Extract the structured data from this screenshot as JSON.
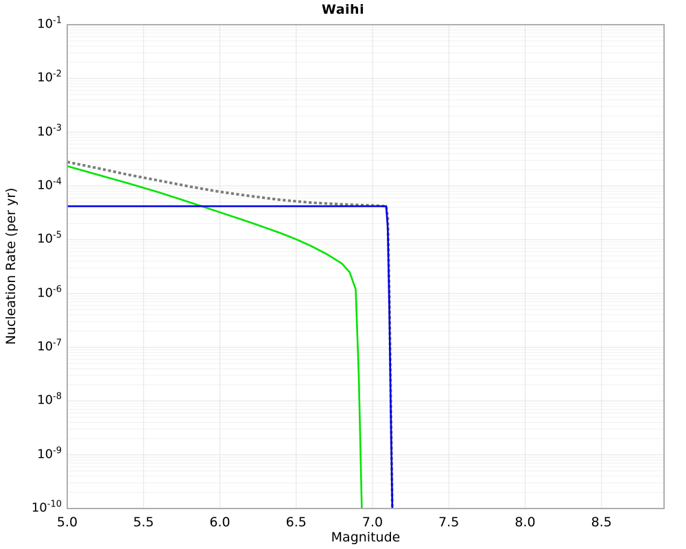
{
  "chart_data": {
    "type": "line",
    "title": "Waihi",
    "xlabel": "Magnitude",
    "ylabel": "Nucleation Rate (per yr)",
    "xlim": [
      5.0,
      8.91
    ],
    "ylim": [
      1e-10,
      0.1
    ],
    "yscale": "log",
    "grid": "major+minor",
    "legend": false,
    "x_ticks": [
      "5.0",
      "5.5",
      "6.0",
      "6.5",
      "7.0",
      "7.5",
      "8.0",
      "8.5"
    ],
    "x_tick_values": [
      5.0,
      5.5,
      6.0,
      6.5,
      7.0,
      7.5,
      8.0,
      8.5
    ],
    "y_tick_exponents": [
      -1,
      -2,
      -3,
      -4,
      -5,
      -6,
      -7,
      -8,
      -9,
      -10
    ],
    "series": [
      {
        "name": "dotted-gray-curve",
        "color": "#7c7c7c",
        "style": "dotted",
        "width": 3.8,
        "points": [
          [
            5.0,
            0.00028
          ],
          [
            5.2,
            0.000214
          ],
          [
            5.4,
            0.000162
          ],
          [
            5.6,
            0.000126
          ],
          [
            5.8,
            9.8e-05
          ],
          [
            6.0,
            7.8e-05
          ],
          [
            6.2,
            6.5e-05
          ],
          [
            6.4,
            5.5e-05
          ],
          [
            6.6,
            4.9e-05
          ],
          [
            6.8,
            4.55e-05
          ],
          [
            7.0,
            4.35e-05
          ],
          [
            7.09,
            4.2e-05
          ],
          [
            7.1,
            2.5e-05
          ],
          [
            7.11,
            1e-06
          ],
          [
            7.12,
            1e-08
          ],
          [
            7.13,
            1e-10
          ]
        ]
      },
      {
        "name": "green-solid-curve",
        "color": "#00e400",
        "style": "solid",
        "width": 2.6,
        "points": [
          [
            5.0,
            0.000234
          ],
          [
            5.2,
            0.000162
          ],
          [
            5.4,
            0.000112
          ],
          [
            5.6,
            7.6e-05
          ],
          [
            5.8,
            5e-05
          ],
          [
            6.0,
            3.24e-05
          ],
          [
            6.2,
            2.1e-05
          ],
          [
            6.4,
            1.32e-05
          ],
          [
            6.5,
            1.02e-05
          ],
          [
            6.6,
            7.6e-06
          ],
          [
            6.7,
            5.4e-06
          ],
          [
            6.8,
            3.6e-06
          ],
          [
            6.85,
            2.5e-06
          ],
          [
            6.89,
            1.2e-06
          ],
          [
            6.91,
            3e-08
          ],
          [
            6.93,
            1e-10
          ]
        ]
      },
      {
        "name": "blue-solid-curve",
        "color": "#0000e6",
        "style": "solid",
        "width": 2.6,
        "points": [
          [
            5.0,
            4.2e-05
          ],
          [
            7.09,
            4.2e-05
          ],
          [
            7.1,
            1.6e-05
          ],
          [
            7.11,
            6e-07
          ],
          [
            7.12,
            6e-09
          ],
          [
            7.13,
            1e-10
          ]
        ]
      }
    ],
    "colors": {
      "background": "#ffffff",
      "spine": "#a6a6a6",
      "grid_major": "#e3e3e3",
      "grid_minor": "#f0f0f0",
      "text": "#000000"
    }
  }
}
